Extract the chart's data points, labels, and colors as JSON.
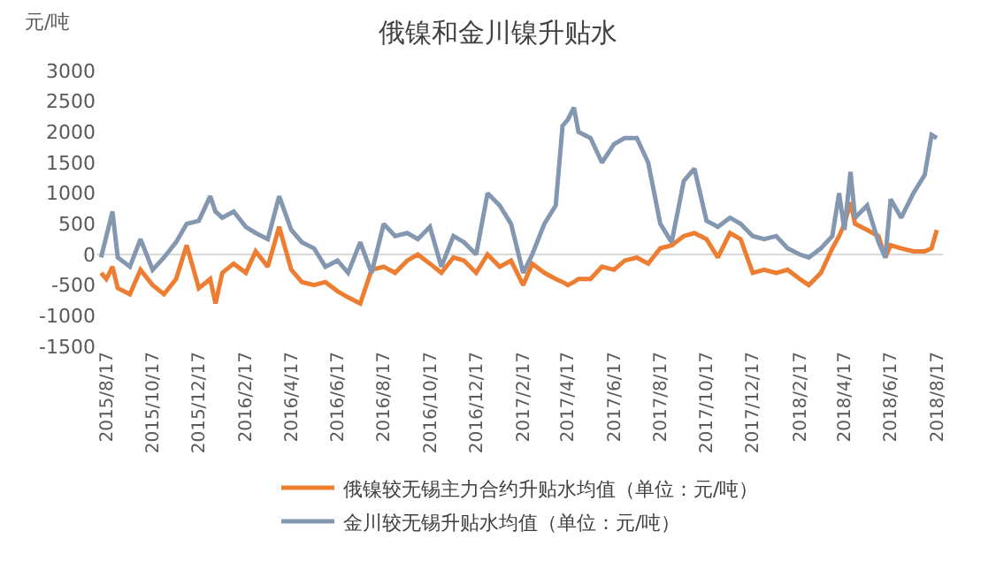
{
  "chart_data": {
    "type": "line",
    "title": "俄镍和金川镍升贴水",
    "ylabel": "元/吨",
    "ylim": [
      -1500,
      3000
    ],
    "yticks": [
      -1500,
      -1000,
      -500,
      0,
      500,
      1000,
      1500,
      2000,
      2500,
      3000
    ],
    "xlim": [
      "2015-08-05",
      "2018-08-25"
    ],
    "xticks": [
      {
        "value": "2015-08-17",
        "label": "2015/8/17"
      },
      {
        "value": "2015-10-17",
        "label": "2015/10/17"
      },
      {
        "value": "2015-12-17",
        "label": "2015/12/17"
      },
      {
        "value": "2016-02-17",
        "label": "2016/2/17"
      },
      {
        "value": "2016-04-17",
        "label": "2016/4/17"
      },
      {
        "value": "2016-06-17",
        "label": "2016/6/17"
      },
      {
        "value": "2016-08-17",
        "label": "2016/8/17"
      },
      {
        "value": "2016-10-17",
        "label": "2016/10/17"
      },
      {
        "value": "2016-12-17",
        "label": "2016/12/17"
      },
      {
        "value": "2017-02-17",
        "label": "2017/2/17"
      },
      {
        "value": "2017-04-17",
        "label": "2017/4/17"
      },
      {
        "value": "2017-06-17",
        "label": "2017/6/17"
      },
      {
        "value": "2017-08-17",
        "label": "2017/8/17"
      },
      {
        "value": "2017-10-17",
        "label": "2017/10/17"
      },
      {
        "value": "2017-12-17",
        "label": "2017/12/17"
      },
      {
        "value": "2018-02-17",
        "label": "2018/2/17"
      },
      {
        "value": "2018-04-17",
        "label": "2018/4/17"
      },
      {
        "value": "2018-06-17",
        "label": "2018/6/17"
      },
      {
        "value": "2018-08-17",
        "label": "2018/8/17"
      }
    ],
    "x": [
      "2015-08-10",
      "2015-08-17",
      "2015-08-25",
      "2015-09-01",
      "2015-09-17",
      "2015-10-01",
      "2015-10-17",
      "2015-11-01",
      "2015-11-17",
      "2015-12-01",
      "2015-12-17",
      "2016-01-01",
      "2016-01-08",
      "2016-01-17",
      "2016-02-01",
      "2016-02-17",
      "2016-03-01",
      "2016-03-17",
      "2016-04-01",
      "2016-04-17",
      "2016-05-01",
      "2016-05-17",
      "2016-06-01",
      "2016-06-17",
      "2016-07-01",
      "2016-07-17",
      "2016-08-01",
      "2016-08-17",
      "2016-09-01",
      "2016-09-17",
      "2016-10-01",
      "2016-10-17",
      "2016-11-01",
      "2016-11-17",
      "2016-12-01",
      "2016-12-17",
      "2017-01-01",
      "2017-01-17",
      "2017-02-01",
      "2017-02-17",
      "2017-03-01",
      "2017-03-17",
      "2017-04-01",
      "2017-04-10",
      "2017-04-17",
      "2017-04-25",
      "2017-05-01",
      "2017-05-17",
      "2017-06-01",
      "2017-06-17",
      "2017-07-01",
      "2017-07-17",
      "2017-08-01",
      "2017-08-17",
      "2017-09-01",
      "2017-09-17",
      "2017-10-01",
      "2017-10-17",
      "2017-11-01",
      "2017-11-17",
      "2017-12-01",
      "2017-12-17",
      "2018-01-01",
      "2018-01-17",
      "2018-02-01",
      "2018-02-17",
      "2018-03-01",
      "2018-03-17",
      "2018-04-01",
      "2018-04-10",
      "2018-04-17",
      "2018-04-25",
      "2018-05-01",
      "2018-05-17",
      "2018-06-01",
      "2018-06-10",
      "2018-06-17",
      "2018-07-01",
      "2018-07-17",
      "2018-08-01",
      "2018-08-10",
      "2018-08-17"
    ],
    "legend": "bottom",
    "line_style": "solid",
    "series": [
      {
        "name": "俄镍较无锡主力合约升贴水均值（单位：元/吨）",
        "color": "#ed7d31",
        "values": [
          -300,
          -400,
          -200,
          -550,
          -650,
          -250,
          -500,
          -650,
          -400,
          150,
          -550,
          -400,
          -800,
          -300,
          -150,
          -300,
          50,
          -200,
          450,
          -250,
          -450,
          -500,
          -450,
          -600,
          -700,
          -800,
          -250,
          -200,
          -300,
          -100,
          0,
          -150,
          -300,
          -50,
          -100,
          -300,
          0,
          -200,
          -100,
          -500,
          -150,
          -300,
          -400,
          -450,
          -500,
          -450,
          -400,
          -400,
          -200,
          -250,
          -100,
          -50,
          -150,
          100,
          150,
          300,
          350,
          250,
          -50,
          350,
          250,
          -300,
          -250,
          -300,
          -250,
          -400,
          -500,
          -300,
          100,
          300,
          500,
          850,
          500,
          400,
          300,
          -50,
          150,
          100,
          50,
          50,
          100,
          400
        ]
      },
      {
        "name": "金川较无锡升贴水均值（单位：元/吨）",
        "color": "#8497b0",
        "values": [
          -50,
          300,
          700,
          -50,
          -200,
          250,
          -250,
          -50,
          200,
          500,
          550,
          950,
          700,
          600,
          700,
          450,
          350,
          250,
          950,
          400,
          200,
          100,
          -200,
          -100,
          -300,
          200,
          -300,
          500,
          300,
          350,
          250,
          450,
          -200,
          300,
          200,
          0,
          1000,
          800,
          500,
          -300,
          0,
          500,
          800,
          2100,
          2200,
          2400,
          2000,
          1900,
          1500,
          1800,
          1900,
          1900,
          1500,
          500,
          200,
          1200,
          1400,
          550,
          450,
          600,
          500,
          300,
          250,
          300,
          100,
          0,
          -50,
          100,
          300,
          1000,
          400,
          1350,
          600,
          800,
          200,
          -50,
          900,
          600,
          1000,
          1300,
          1950,
          1900
        ]
      }
    ]
  }
}
